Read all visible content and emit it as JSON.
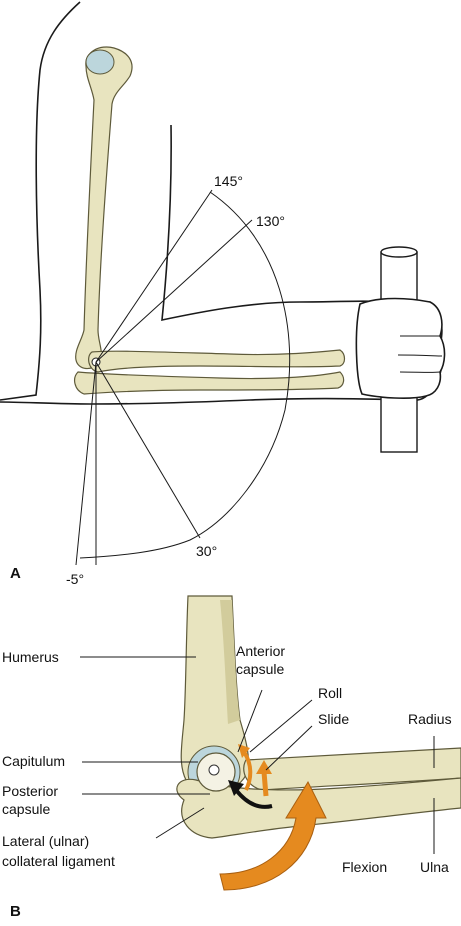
{
  "panel_a": {
    "letter": "A",
    "angles": {
      "a145": "145°",
      "a130": "130°",
      "a30": "30°",
      "aneg5": "-5°"
    }
  },
  "panel_b": {
    "letter": "B",
    "labels": {
      "humerus": "Humerus",
      "anterior_capsule_1": "Anterior",
      "anterior_capsule_2": "capsule",
      "roll": "Roll",
      "slide": "Slide",
      "radius": "Radius",
      "capitulum": "Capitulum",
      "posterior_capsule_1": "Posterior",
      "posterior_capsule_2": "capsule",
      "lateral_ligament_1": "Lateral (ulnar)",
      "lateral_ligament_2": "collateral ligament",
      "flexion": "Flexion",
      "ulna": "Ulna"
    }
  },
  "colors": {
    "bone": "#e8e4bf",
    "cartilage": "#bcd6dc",
    "arrow_orange": "#e58a1f",
    "outline": "#1a1a1a"
  }
}
